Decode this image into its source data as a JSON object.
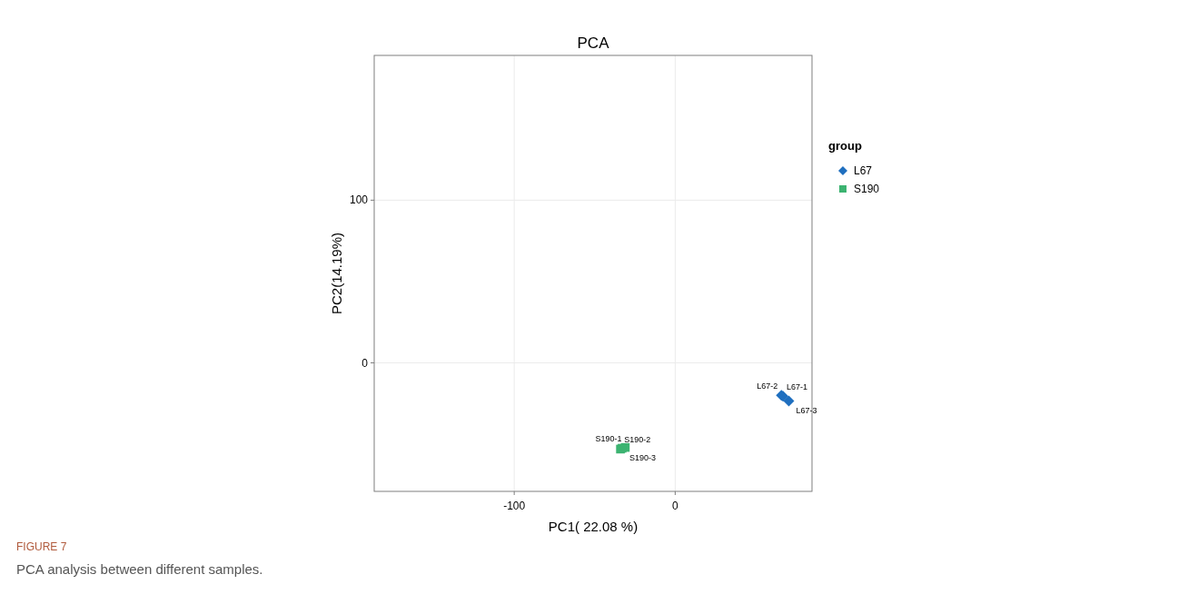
{
  "chart_data": {
    "type": "scatter",
    "title": "PCA",
    "xlabel": "PC1( 22.08 %)",
    "ylabel": "PC2(14.19%)",
    "legend_title": "group",
    "xlim": [
      -187,
      85
    ],
    "ylim": [
      -79,
      189
    ],
    "xticks": [
      -100,
      0
    ],
    "yticks": [
      0,
      100
    ],
    "grid": true,
    "legend": "right",
    "series": [
      {
        "name": "L67",
        "color": "#1f6fbf",
        "marker": "diamond",
        "x": [
          66,
          67,
          70.6
        ],
        "values": [
          -20,
          -20.5,
          -23.5
        ]
      },
      {
        "name": "S190",
        "color": "#3cb371",
        "marker": "square",
        "x": [
          -31,
          -34,
          -33
        ],
        "values": [
          -52,
          -53,
          -52.5
        ]
      }
    ],
    "annotations": [
      {
        "text": "L67-2",
        "x": 66,
        "y": -20
      },
      {
        "text": "L67-1",
        "x": 67,
        "y": -20.5
      },
      {
        "text": "L67-3",
        "x": 70.6,
        "y": -23.5
      },
      {
        "text": "S190-1",
        "x": -31,
        "y": -52
      },
      {
        "text": "S190-2",
        "x": -34,
        "y": -53
      },
      {
        "text": "S190-3",
        "x": -33,
        "y": -52.5
      },
      "FIGURE 7",
      "PCA analysis between different samples."
    ]
  }
}
